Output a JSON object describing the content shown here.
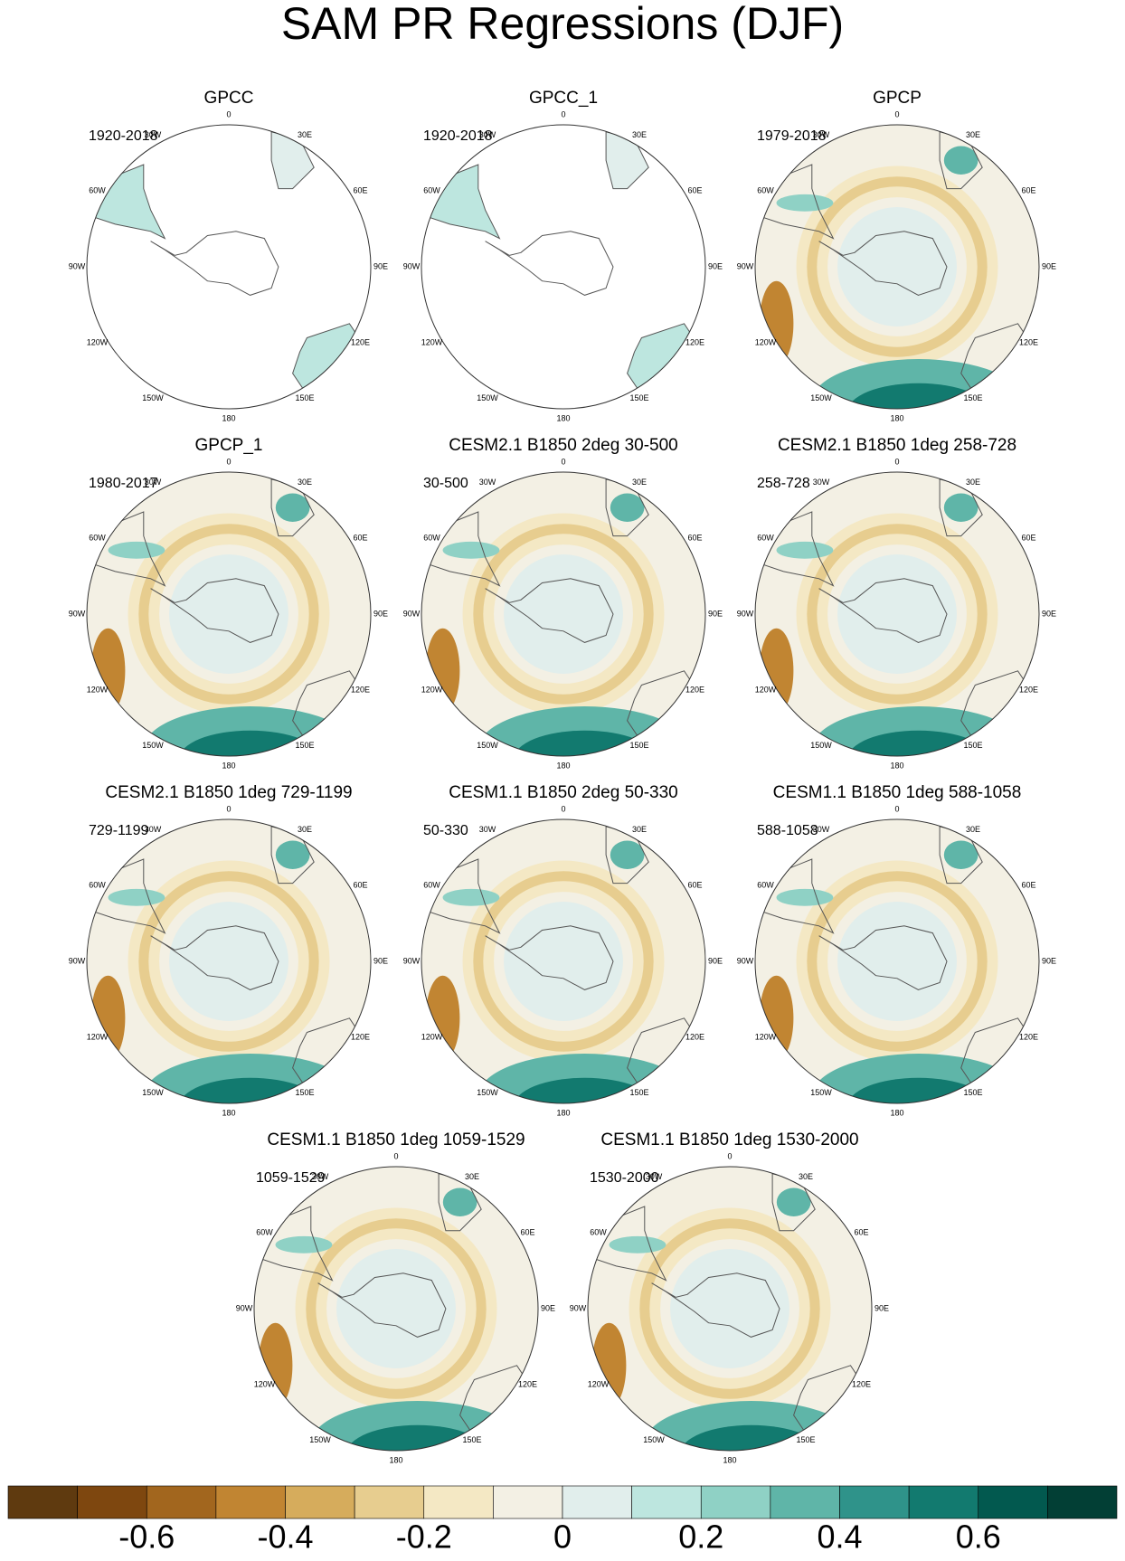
{
  "title": "SAM PR Regressions (DJF)",
  "longitude_labels": [
    "0",
    "30E",
    "60E",
    "90E",
    "120E",
    "150E",
    "180",
    "150W",
    "120W",
    "90W",
    "60W",
    "30W"
  ],
  "panels": [
    {
      "title": "GPCC",
      "period": "1920-2018"
    },
    {
      "title": "GPCC_1",
      "period": "1920-2018"
    },
    {
      "title": "GPCP",
      "period": "1979-2018"
    },
    {
      "title": "GPCP_1",
      "period": "1980-2017"
    },
    {
      "title": "CESM2.1 B1850 2deg 30-500",
      "period": "30-500"
    },
    {
      "title": "CESM2.1 B1850 1deg 258-728",
      "period": "258-728"
    },
    {
      "title": "CESM2.1 B1850 1deg 729-1199",
      "period": "729-1199"
    },
    {
      "title": "CESM1.1 B1850 2deg 50-330",
      "period": "50-330"
    },
    {
      "title": "CESM1.1 B1850 1deg 588-1058",
      "period": "588-1058"
    },
    {
      "title": "CESM1.1 B1850 1deg 1059-1529",
      "period": "1059-1529"
    },
    {
      "title": "CESM1.1 B1850 1deg 1530-2000",
      "period": "1530-2000"
    }
  ],
  "colorbar": {
    "lim": [
      -0.8,
      0.8
    ],
    "levels": [
      -0.7,
      -0.6,
      -0.5,
      -0.4,
      -0.3,
      -0.2,
      -0.1,
      0,
      0.1,
      0.2,
      0.3,
      0.4,
      0.5,
      0.6,
      0.7
    ],
    "colors": [
      "#5f3a0f",
      "#7e470f",
      "#a2661e",
      "#c18532",
      "#d6ac5c",
      "#e7cd8f",
      "#f4e8c4",
      "#f3f0e4",
      "#e1eeec",
      "#bde6df",
      "#8fd1c5",
      "#5fb5a8",
      "#2f938a",
      "#127a6f",
      "#02594f",
      "#023f35"
    ],
    "ticks": [
      -0.6,
      -0.4,
      -0.2,
      0,
      0.2,
      0.4,
      0.6
    ]
  }
}
